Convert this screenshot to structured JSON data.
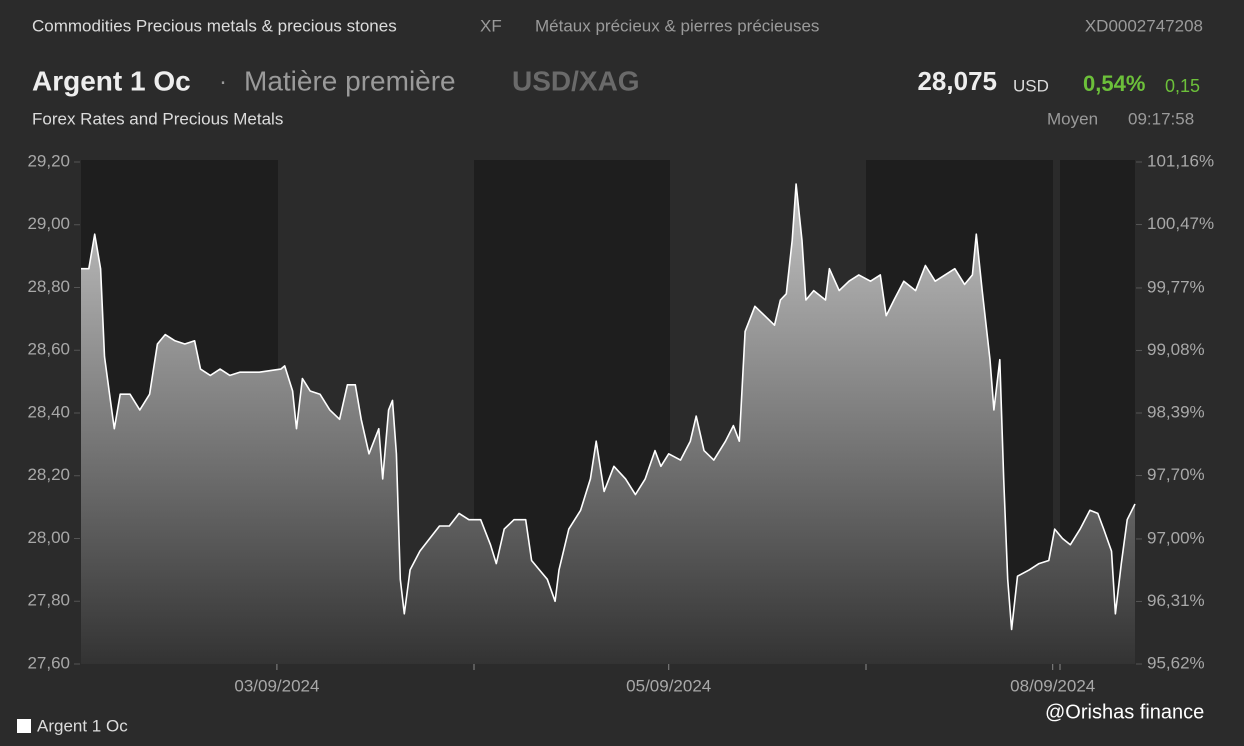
{
  "header": {
    "category": "Commodities Precious metals & precious stones",
    "exchange": "XF",
    "category_fr": "Métaux précieux & pierres précieuses",
    "isin": "XD0002747208",
    "name": "Argent 1 Oc",
    "separator": "·",
    "asset_type": "Matière première",
    "pair": "USD/XAG",
    "price": "28,075",
    "currency": "USD",
    "change_pct": "0,54%",
    "change": "0,15",
    "source": "Forex Rates and Precious Metals",
    "price_type": "Moyen",
    "time": "09:17:58"
  },
  "watermark": "@Orishas finance",
  "chart_data": {
    "type": "area",
    "x": [
      0,
      0.04,
      0.07,
      0.1,
      0.12,
      0.15,
      0.17,
      0.2,
      0.25,
      0.3,
      0.35,
      0.39,
      0.43,
      0.48,
      0.53,
      0.58,
      0.61,
      0.66,
      0.71,
      0.76,
      0.81,
      0.91,
      1.02,
      1.04,
      1.08,
      1.1,
      1.13,
      1.17,
      1.22,
      1.27,
      1.32,
      1.36,
      1.4,
      1.43,
      1.47,
      1.52,
      1.54,
      1.57,
      1.59,
      1.61,
      1.63,
      1.65,
      1.68,
      1.73,
      1.78,
      1.83,
      1.88,
      1.93,
      1.98,
      2.04,
      2.09,
      2.12,
      2.16,
      2.21,
      2.27,
      2.3,
      2.34,
      2.38,
      2.42,
      2.44,
      2.49,
      2.55,
      2.6,
      2.63,
      2.67,
      2.72,
      2.78,
      2.83,
      2.88,
      2.93,
      2.96,
      3.0,
      3.06,
      3.11,
      3.14,
      3.18,
      3.23,
      3.29,
      3.33,
      3.36,
      3.39,
      3.44,
      3.49,
      3.54,
      3.57,
      3.6,
      3.63,
      3.65,
      3.68,
      3.7,
      3.74,
      3.8,
      3.82,
      3.87,
      3.92,
      3.97,
      4.03,
      4.08,
      4.11,
      4.15,
      4.2,
      4.26,
      4.31,
      4.36,
      4.41,
      4.46,
      4.51,
      4.55,
      4.57,
      4.6,
      4.64,
      4.66,
      4.69,
      4.71,
      4.73,
      4.75,
      4.78,
      4.84,
      4.89,
      4.94,
      4.97,
      5.01,
      5.05,
      5.1,
      5.15,
      5.19,
      5.22,
      5.26,
      5.28,
      5.31,
      5.34,
      5.38
    ],
    "series": [
      {
        "name": "Argent 1 Oc",
        "color": "#ffffff",
        "values": [
          28.86,
          28.86,
          28.97,
          28.86,
          28.58,
          28.44,
          28.35,
          28.46,
          28.46,
          28.41,
          28.46,
          28.62,
          28.65,
          28.63,
          28.62,
          28.63,
          28.54,
          28.52,
          28.54,
          28.52,
          28.53,
          28.53,
          28.54,
          28.55,
          28.47,
          28.35,
          28.51,
          28.47,
          28.46,
          28.41,
          28.38,
          28.49,
          28.49,
          28.38,
          28.27,
          28.35,
          28.19,
          28.41,
          28.44,
          28.27,
          27.87,
          27.76,
          27.9,
          27.96,
          28.0,
          28.04,
          28.04,
          28.08,
          28.06,
          28.06,
          27.98,
          27.92,
          28.03,
          28.06,
          28.06,
          27.93,
          27.9,
          27.87,
          27.8,
          27.9,
          28.03,
          28.09,
          28.19,
          28.31,
          28.15,
          28.23,
          28.19,
          28.14,
          28.19,
          28.28,
          28.23,
          28.27,
          28.25,
          28.31,
          28.39,
          28.28,
          28.25,
          28.31,
          28.36,
          28.31,
          28.66,
          28.74,
          28.71,
          28.68,
          28.76,
          28.78,
          28.95,
          29.13,
          28.95,
          28.76,
          28.79,
          28.76,
          28.86,
          28.79,
          28.82,
          28.84,
          28.82,
          28.84,
          28.71,
          28.76,
          28.82,
          28.79,
          28.87,
          28.82,
          28.84,
          28.86,
          28.81,
          28.84,
          28.97,
          28.79,
          28.57,
          28.41,
          28.57,
          28.19,
          27.87,
          27.71,
          27.88,
          27.9,
          27.92,
          27.93,
          28.03,
          28.0,
          27.98,
          28.03,
          28.09,
          28.08,
          28.03,
          27.96,
          27.76,
          27.92,
          28.06,
          28.11
        ]
      }
    ],
    "xlim": [
      0,
      5.38
    ],
    "xticks": [
      {
        "value": 1,
        "label": "03/09/2024"
      },
      {
        "value": 3,
        "label": "05/09/2024"
      },
      {
        "value": 4.96,
        "label": "08/09/2024"
      }
    ],
    "ylim": [
      27.6,
      29.2
    ],
    "yticks": [
      {
        "value": 27.6,
        "label": "27,60"
      },
      {
        "value": 27.8,
        "label": "27,80"
      },
      {
        "value": 28.0,
        "label": "28,00"
      },
      {
        "value": 28.2,
        "label": "28,20"
      },
      {
        "value": 28.4,
        "label": "28,40"
      },
      {
        "value": 28.6,
        "label": "28,60"
      },
      {
        "value": 28.8,
        "label": "28,80"
      },
      {
        "value": 29.0,
        "label": "29,00"
      },
      {
        "value": 29.2,
        "label": "29,20"
      }
    ],
    "y2lim": [
      95.62,
      101.16
    ],
    "y2ticks": [
      {
        "value": 95.62,
        "label": "95,62%"
      },
      {
        "value": 96.31,
        "label": "96,31%"
      },
      {
        "value": 97.0,
        "label": "97,00%"
      },
      {
        "value": 97.7,
        "label": "97,70%"
      },
      {
        "value": 98.39,
        "label": "98,39%"
      },
      {
        "value": 99.08,
        "label": "99,08%"
      },
      {
        "value": 99.77,
        "label": "99,77%"
      },
      {
        "value": 100.47,
        "label": "100,47%"
      },
      {
        "value": 101.16,
        "label": "101,16%"
      }
    ],
    "legend": "bottom-left"
  }
}
